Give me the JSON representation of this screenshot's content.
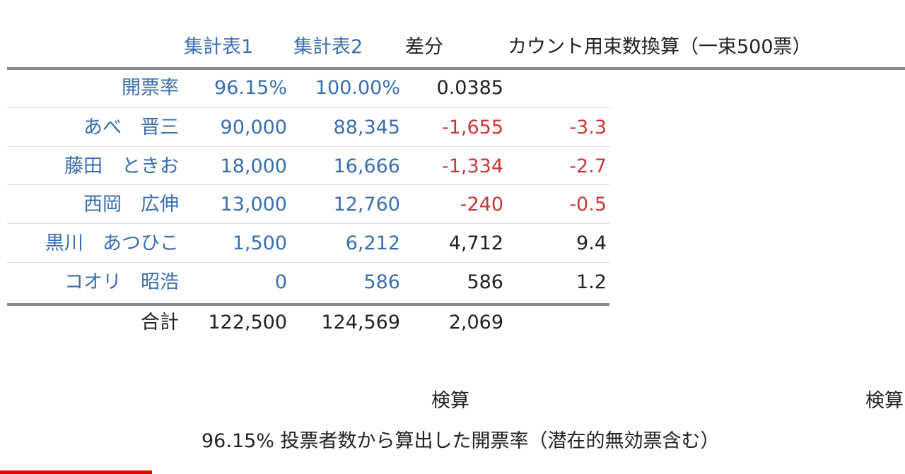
{
  "table": {
    "header": [
      "集計表1",
      "集計表2",
      "差分",
      "カウント用束数換算（一束500票）"
    ],
    "rows": [
      [
        "開票率",
        "96.15%",
        "100.00%",
        "0.0385"
      ],
      [
        "あべ　晋三",
        "90,000",
        "88,345",
        "-1,655",
        "-3.3"
      ],
      [
        "藤田　ときお",
        "18,000",
        "16,666",
        "-1,334",
        "-2.7"
      ],
      [
        "西岡　広伸",
        "13,000",
        "12,760",
        "-240",
        "-0.5"
      ],
      [
        "黒川　あつひこ",
        "1,500",
        "6,212",
        "4,712",
        "9.4"
      ],
      [
        "コオリ　昭浩",
        "0",
        "586",
        "586",
        "1.2"
      ]
    ],
    "total": [
      "合計",
      "122,500",
      "124,569",
      "2,069"
    ]
  },
  "check": {
    "heading": "検算",
    "heading_right": "検算",
    "note": "96.15% 投票者数から算出した開票率（潜在的無効票含む）"
  }
}
